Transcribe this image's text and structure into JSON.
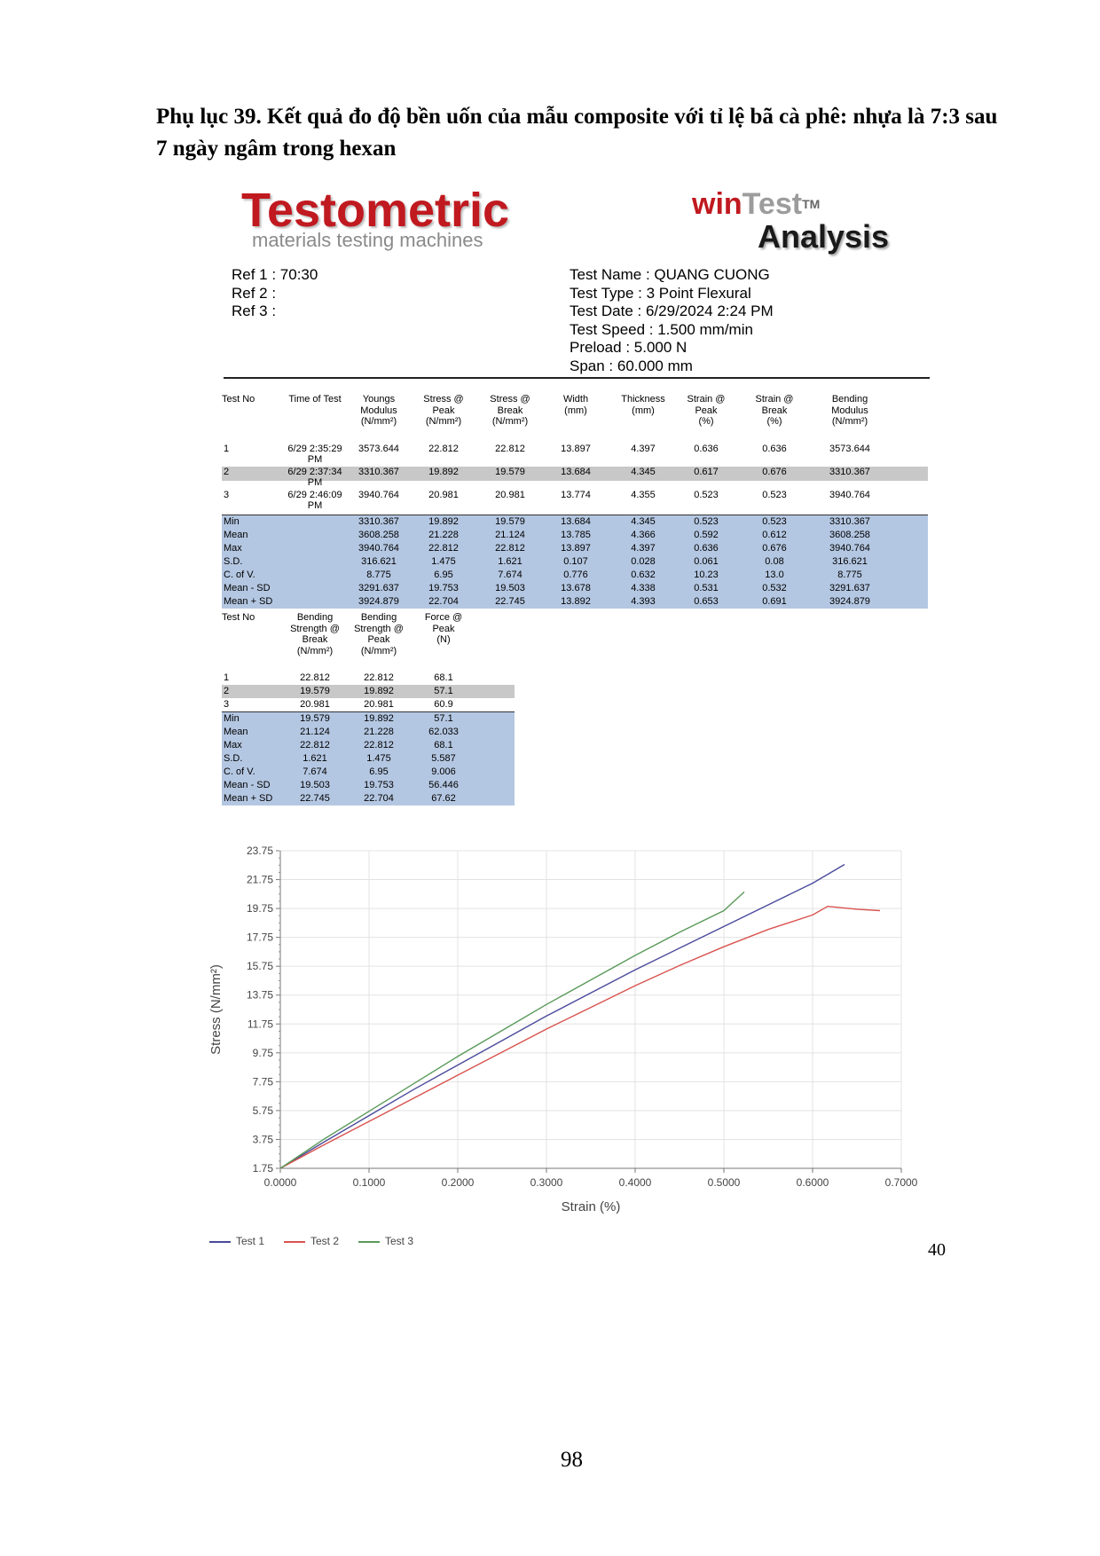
{
  "heading": "Phụ lục 39. Kết quả đo độ bền uốn của mẫu composite với tỉ lệ bã cà phê: nhựa là 7:3 sau 7 ngày ngâm trong hexan",
  "logos": {
    "testometric": "Testometric",
    "testometric_sub": "materials testing machines",
    "wintest_win": "win",
    "wintest_test": "Test",
    "wintest_tm": "TM",
    "analysis": "Analysis"
  },
  "meta_left": [
    "Ref 1 : 70:30",
    "Ref 2 :",
    "Ref 3 :"
  ],
  "meta_right": [
    "Test Name : QUANG CUONG",
    "Test Type : 3 Point Flexural",
    "Test Date : 6/29/2024 2:24 PM",
    "Test Speed : 1.500 mm/min",
    "Preload : 5.000 N",
    "Span : 60.000 mm"
  ],
  "table1": {
    "headers": [
      [
        "Test No"
      ],
      [
        "Time of Test"
      ],
      [
        "Youngs",
        "Modulus",
        "(N/mm²)"
      ],
      [
        "Stress @",
        "Peak",
        "(N/mm²)"
      ],
      [
        "Stress @",
        "Break",
        "(N/mm²)"
      ],
      [
        "Width",
        "(mm)"
      ],
      [
        "Thickness",
        "(mm)"
      ],
      [
        "Strain @",
        "Peak",
        "(%)"
      ],
      [
        "Strain @",
        "Break",
        "(%)"
      ],
      [
        "Bending",
        "Modulus",
        "(N/mm²)"
      ]
    ],
    "rows": [
      {
        "no": "1",
        "time": [
          "6/29 2:35:29",
          "PM"
        ],
        "vals": [
          "3573.644",
          "22.812",
          "22.812",
          "13.897",
          "4.397",
          "0.636",
          "0.636",
          "3573.644"
        ]
      },
      {
        "no": "2",
        "time": [
          "6/29 2:37:34",
          "PM"
        ],
        "vals": [
          "3310.367",
          "19.892",
          "19.579",
          "13.684",
          "4.345",
          "0.617",
          "0.676",
          "3310.367"
        ]
      },
      {
        "no": "3",
        "time": [
          "6/29 2:46:09",
          "PM"
        ],
        "vals": [
          "3940.764",
          "20.981",
          "20.981",
          "13.774",
          "4.355",
          "0.523",
          "0.523",
          "3940.764"
        ]
      }
    ],
    "stats": [
      {
        "label": "Min",
        "vals": [
          "3310.367",
          "19.892",
          "19.579",
          "13.684",
          "4.345",
          "0.523",
          "0.523",
          "3310.367"
        ]
      },
      {
        "label": "Mean",
        "vals": [
          "3608.258",
          "21.228",
          "21.124",
          "13.785",
          "4.366",
          "0.592",
          "0.612",
          "3608.258"
        ]
      },
      {
        "label": "Max",
        "vals": [
          "3940.764",
          "22.812",
          "22.812",
          "13.897",
          "4.397",
          "0.636",
          "0.676",
          "3940.764"
        ]
      },
      {
        "label": "S.D.",
        "vals": [
          "316.621",
          "1.475",
          "1.621",
          "0.107",
          "0.028",
          "0.061",
          "0.08",
          "316.621"
        ]
      },
      {
        "label": "C. of V.",
        "vals": [
          "8.775",
          "6.95",
          "7.674",
          "0.776",
          "0.632",
          "10.23",
          "13.0",
          "8.775"
        ]
      },
      {
        "label": "Mean - SD",
        "vals": [
          "3291.637",
          "19.753",
          "19.503",
          "13.678",
          "4.338",
          "0.531",
          "0.532",
          "3291.637"
        ]
      },
      {
        "label": "Mean + SD",
        "vals": [
          "3924.879",
          "22.704",
          "22.745",
          "13.892",
          "4.393",
          "0.653",
          "0.691",
          "3924.879"
        ]
      }
    ]
  },
  "table2": {
    "headers": [
      [
        "Test No"
      ],
      [
        "Bending",
        "Strength @",
        "Break",
        "(N/mm²)"
      ],
      [
        "Bending",
        "Strength @",
        "Peak",
        "(N/mm²)"
      ],
      [
        "Force @",
        "Peak",
        "(N)"
      ]
    ],
    "rows": [
      {
        "no": "1",
        "vals": [
          "22.812",
          "22.812",
          "68.1"
        ]
      },
      {
        "no": "2",
        "vals": [
          "19.579",
          "19.892",
          "57.1"
        ]
      },
      {
        "no": "3",
        "vals": [
          "20.981",
          "20.981",
          "60.9"
        ]
      }
    ],
    "stats": [
      {
        "label": "Min",
        "vals": [
          "19.579",
          "19.892",
          "57.1"
        ]
      },
      {
        "label": "Mean",
        "vals": [
          "21.124",
          "21.228",
          "62.033"
        ]
      },
      {
        "label": "Max",
        "vals": [
          "22.812",
          "22.812",
          "68.1"
        ]
      },
      {
        "label": "S.D.",
        "vals": [
          "1.621",
          "1.475",
          "5.587"
        ]
      },
      {
        "label": "C. of V.",
        "vals": [
          "7.674",
          "6.95",
          "9.006"
        ]
      },
      {
        "label": "Mean - SD",
        "vals": [
          "19.503",
          "19.753",
          "56.446"
        ]
      },
      {
        "label": "Mean + SD",
        "vals": [
          "22.745",
          "22.704",
          "67.62"
        ]
      }
    ]
  },
  "chart_data": {
    "type": "line",
    "title": "",
    "xlabel": "Strain (%)",
    "ylabel": "Stress (N/mm²)",
    "xlim": [
      0.0,
      0.7
    ],
    "ylim": [
      1.75,
      23.75
    ],
    "x_ticks": [
      "0.0000",
      "0.1000",
      "0.2000",
      "0.3000",
      "0.4000",
      "0.5000",
      "0.6000",
      "0.7000"
    ],
    "y_ticks": [
      "1.75",
      "3.75",
      "5.75",
      "7.75",
      "9.75",
      "11.75",
      "13.75",
      "15.75",
      "17.75",
      "19.75",
      "21.75",
      "23.75"
    ],
    "grid": true,
    "legend_position": "bottom-left",
    "series": [
      {
        "name": "Test 1",
        "color": "#4a4a9c",
        "x": [
          0.0,
          0.05,
          0.1,
          0.15,
          0.2,
          0.25,
          0.3,
          0.35,
          0.4,
          0.45,
          0.5,
          0.55,
          0.6,
          0.636
        ],
        "y": [
          1.75,
          3.6,
          5.4,
          7.2,
          8.9,
          10.6,
          12.3,
          13.9,
          15.5,
          17.0,
          18.5,
          20.0,
          21.5,
          22.8
        ]
      },
      {
        "name": "Test 2",
        "color": "#d9534f",
        "x": [
          0.0,
          0.05,
          0.1,
          0.15,
          0.2,
          0.25,
          0.3,
          0.35,
          0.4,
          0.45,
          0.5,
          0.55,
          0.6,
          0.617,
          0.65,
          0.676
        ],
        "y": [
          1.75,
          3.4,
          5.0,
          6.6,
          8.2,
          9.8,
          11.4,
          12.9,
          14.4,
          15.8,
          17.1,
          18.3,
          19.3,
          19.9,
          19.7,
          19.6
        ]
      },
      {
        "name": "Test 3",
        "color": "#5a9a5a",
        "x": [
          0.0,
          0.05,
          0.1,
          0.15,
          0.2,
          0.25,
          0.3,
          0.35,
          0.4,
          0.45,
          0.5,
          0.523
        ],
        "y": [
          1.75,
          3.8,
          5.7,
          7.6,
          9.5,
          11.3,
          13.1,
          14.8,
          16.5,
          18.1,
          19.6,
          20.9
        ]
      }
    ]
  },
  "page_num_inner": "40",
  "page_num": "98"
}
